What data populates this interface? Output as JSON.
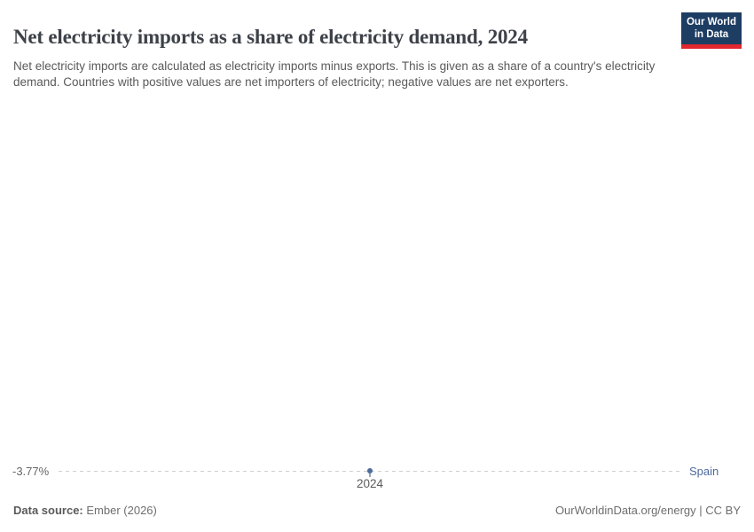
{
  "header": {
    "title": "Net electricity imports as a share of electricity demand, 2024",
    "subtitle": "Net electricity imports are calculated as electricity imports minus exports. This is given as a share of a country's electricity demand. Countries with positive values are net importers of electricity; negative values are net exporters.",
    "logo": {
      "line1": "Our World",
      "line2": "in Data"
    }
  },
  "chart_data": {
    "type": "line",
    "title": "Net electricity imports as a share of electricity demand, 2024",
    "x": [
      2024
    ],
    "x_tick_labels": [
      "2024"
    ],
    "series": [
      {
        "name": "Spain",
        "values": [
          -3.77
        ]
      }
    ],
    "unit": "%",
    "point_label": "-3.77%",
    "grid": false,
    "legend_position": "right-of-line"
  },
  "footer": {
    "source_label": "Data source:",
    "source_value": "Ember (2026)",
    "license": "OurWorldinData.org/energy | CC BY"
  },
  "colors": {
    "series_blue": "#4c6a9c",
    "logo_navy": "#1d3d63",
    "logo_red": "#e0272e",
    "dashed_line": "#cfcfcf",
    "title_text": "#3d4148",
    "subtitle_text": "#5a5a5a"
  }
}
